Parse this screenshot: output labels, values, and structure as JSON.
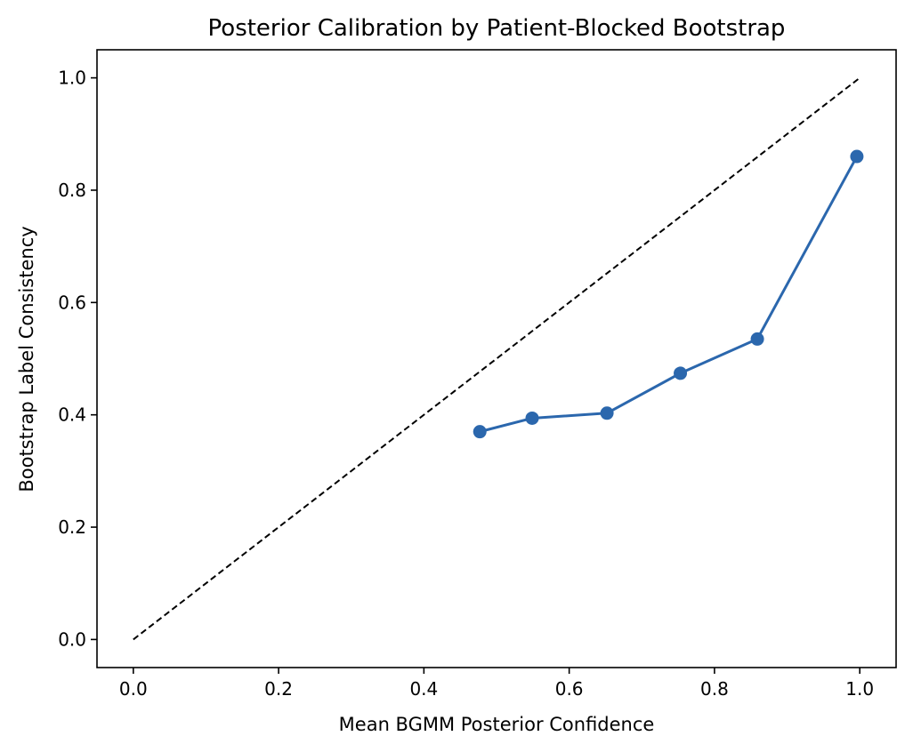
{
  "chart_data": {
    "type": "line",
    "title": "Posterior Calibration by Patient-Blocked Bootstrap",
    "xlabel": "Mean BGMM Posterior Confidence",
    "ylabel": "Bootstrap Label Consistency",
    "xlim": [
      -0.05,
      1.05
    ],
    "ylim": [
      -0.05,
      1.05
    ],
    "xticks": [
      0.0,
      0.2,
      0.4,
      0.6,
      0.8,
      1.0
    ],
    "yticks": [
      0.0,
      0.2,
      0.4,
      0.6,
      0.8,
      1.0
    ],
    "xtick_labels": [
      "0.0",
      "0.2",
      "0.4",
      "0.6",
      "0.8",
      "1.0"
    ],
    "ytick_labels": [
      "0.0",
      "0.2",
      "0.4",
      "0.6",
      "0.8",
      "1.0"
    ],
    "grid": false,
    "reference_line": {
      "x": [
        0.0,
        1.0
      ],
      "y": [
        0.0,
        1.0
      ],
      "style": "dashed",
      "color": "#000000"
    },
    "series": [
      {
        "x": [
          0.477,
          0.549,
          0.652,
          0.753,
          0.859,
          0.996
        ],
        "y": [
          0.37,
          0.394,
          0.403,
          0.474,
          0.535,
          0.86
        ],
        "color": "#2b67ad",
        "marker": "circle"
      }
    ]
  }
}
